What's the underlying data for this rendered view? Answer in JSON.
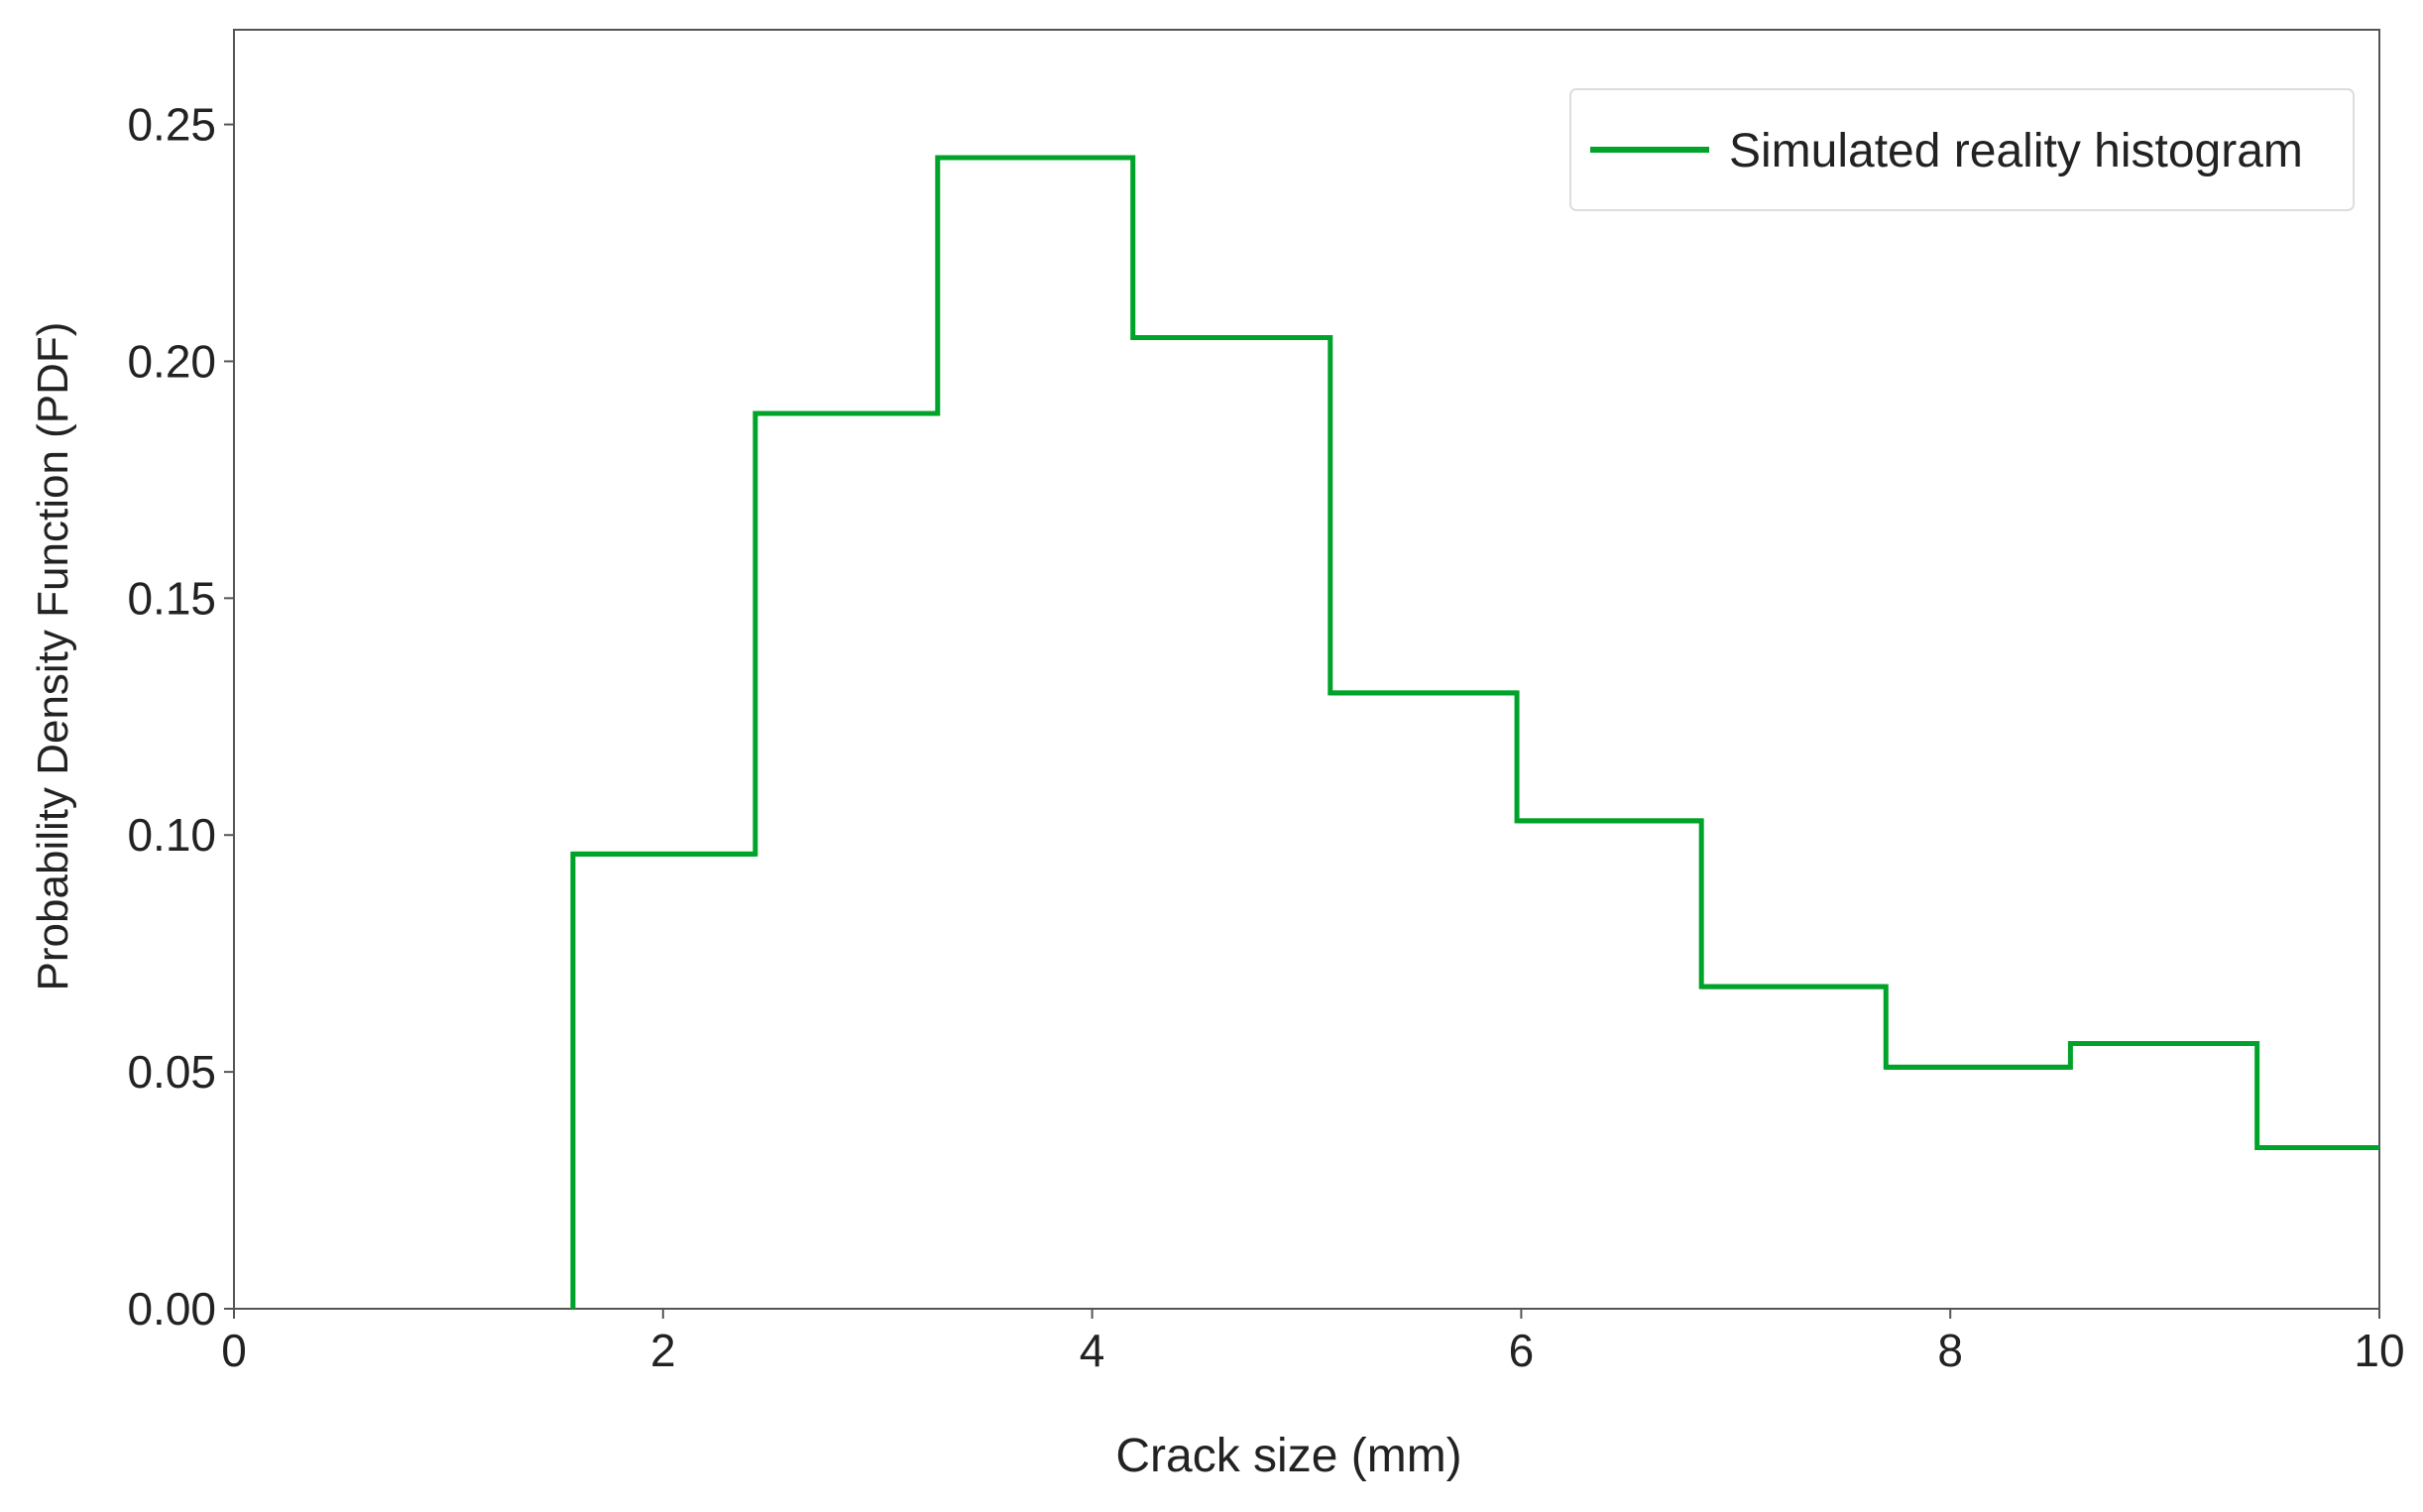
{
  "chart_data": {
    "type": "line",
    "subtype": "step-histogram",
    "title": "",
    "xlabel": "Crack size (mm)",
    "ylabel": "Probability Density Function (PDF)",
    "xlim": [
      0,
      10
    ],
    "ylim": [
      0,
      0.27
    ],
    "x_ticks": [
      0,
      2,
      4,
      6,
      8,
      10
    ],
    "x_tick_labels": [
      "0",
      "2",
      "4",
      "6",
      "8",
      "10"
    ],
    "y_ticks": [
      0,
      0.05,
      0.1,
      0.15,
      0.2,
      0.25
    ],
    "y_tick_labels": [
      "0.00",
      "0.05",
      "0.10",
      "0.15",
      "0.20",
      "0.25"
    ],
    "grid": false,
    "legend_position": "top-right",
    "series": [
      {
        "name": "Simulated reality histogram",
        "color": "#00a32a",
        "bin_edges": [
          1.58,
          2.43,
          3.28,
          4.19,
          5.11,
          5.98,
          6.84,
          7.7,
          8.56,
          9.43,
          10.0
        ],
        "values": [
          0.096,
          0.189,
          0.243,
          0.205,
          0.13,
          0.103,
          0.068,
          0.051,
          0.056,
          0.034
        ]
      }
    ]
  }
}
